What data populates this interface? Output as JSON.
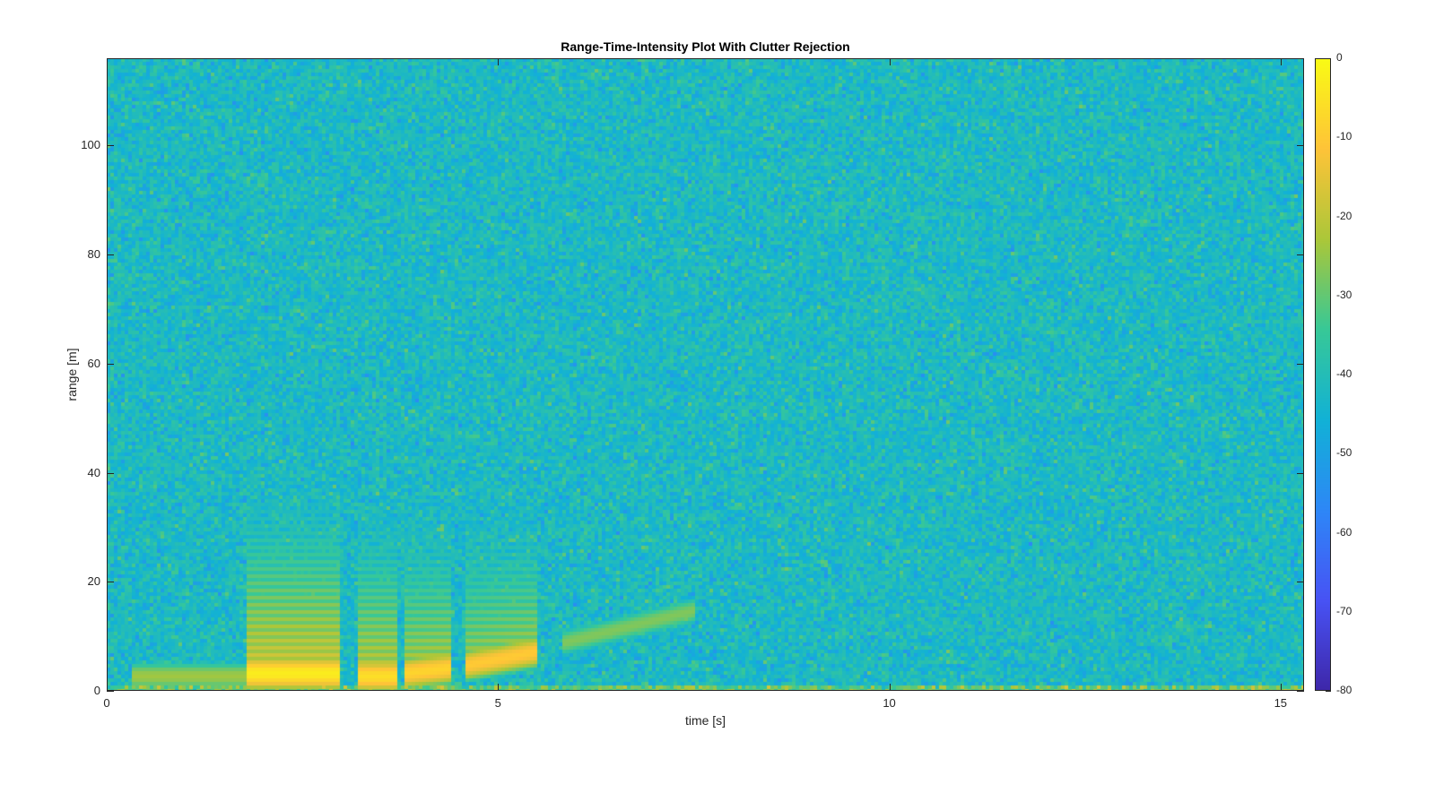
{
  "chart_data": {
    "type": "heatmap",
    "title": "Range-Time-Intensity Plot With Clutter Rejection",
    "xlabel": "time [s]",
    "ylabel": "range [m]",
    "xlim": [
      0,
      15.3
    ],
    "ylim": [
      0,
      116
    ],
    "xticks": [
      "0",
      "5",
      "10",
      "15"
    ],
    "yticks": [
      "0",
      "20",
      "40",
      "60",
      "80",
      "100"
    ],
    "colorbar": {
      "clim": [
        -80,
        0
      ],
      "ticks": [
        "0",
        "-10",
        "-20",
        "-30",
        "-40",
        "-50",
        "-60",
        "-70",
        "-80"
      ],
      "colormap": "parula"
    },
    "noise_floor_db": -42,
    "features": [
      {
        "t": [
          0.3,
          1.8
        ],
        "range": [
          3,
          3
        ],
        "db": -24
      },
      {
        "t": [
          1.8,
          3.0
        ],
        "range": [
          3.5,
          3.5
        ],
        "db": -3
      },
      {
        "t": [
          3.2,
          3.7
        ],
        "range": [
          3,
          3
        ],
        "db": -6
      },
      {
        "t": [
          3.8,
          4.4
        ],
        "range": [
          3.5,
          4.5
        ],
        "db": -8
      },
      {
        "t": [
          4.6,
          5.5
        ],
        "range": [
          5,
          7.5
        ],
        "db": -10
      },
      {
        "t": [
          5.8,
          7.5
        ],
        "range": [
          9,
          15
        ],
        "db": -27
      }
    ]
  }
}
